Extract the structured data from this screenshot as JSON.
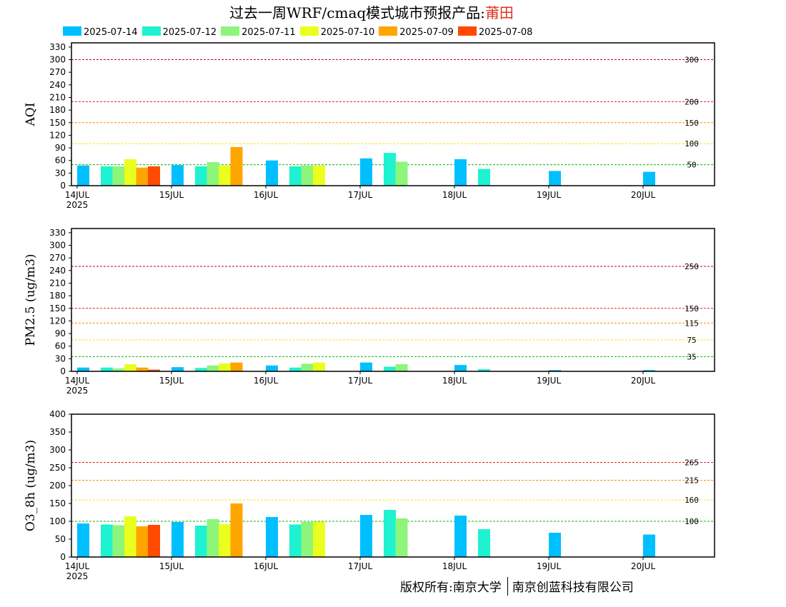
{
  "header": {
    "title": "过去一周WRF/cmaq模式城市预报产品:",
    "city": "莆田"
  },
  "legend": [
    {
      "label": "2025-07-14",
      "color": "#00bfff"
    },
    {
      "label": "2025-07-12",
      "color": "#1ef2d0"
    },
    {
      "label": "2025-07-11",
      "color": "#8cf57a"
    },
    {
      "label": "2025-07-10",
      "color": "#eaff1e"
    },
    {
      "label": "2025-07-09",
      "color": "#ffa500"
    },
    {
      "label": "2025-07-08",
      "color": "#ff4a00"
    }
  ],
  "footer": {
    "left": "版权所有:南京大学",
    "right": "南京创蓝科技有限公司"
  },
  "chart_data": [
    {
      "type": "bar",
      "ylabel": "AQI",
      "ylim": [
        0,
        340
      ],
      "yticks": [
        0,
        30,
        60,
        90,
        120,
        150,
        180,
        210,
        240,
        270,
        300,
        330
      ],
      "xlim": [
        0,
        6.9
      ],
      "day_labels": [
        "14JUL",
        "15JUL",
        "16JUL",
        "17JUL",
        "18JUL",
        "19JUL",
        "20JUL"
      ],
      "year_label": "2025",
      "thresholds": [
        {
          "value": 300,
          "label": "300",
          "color": "#b0003a"
        },
        {
          "value": 200,
          "label": "200",
          "color": "#e02020"
        },
        {
          "value": 150,
          "label": "150",
          "color": "#ff8c00"
        },
        {
          "value": 100,
          "label": "100",
          "color": "#ffe400"
        },
        {
          "value": 50,
          "label": "50",
          "color": "#00bb00"
        }
      ],
      "series": [
        {
          "name": "2025-07-14",
          "values": [
            [
              0.0,
              48
            ],
            [
              1.0,
              49
            ],
            [
              2.0,
              60
            ],
            [
              3.0,
              65
            ],
            [
              4.0,
              63
            ],
            [
              5.0,
              35
            ],
            [
              6.0,
              33
            ]
          ]
        },
        {
          "name": "2025-07-12",
          "values": [
            [
              0.25,
              46
            ],
            [
              1.25,
              46
            ],
            [
              2.25,
              46
            ],
            [
              3.25,
              78
            ],
            [
              4.25,
              40
            ]
          ]
        },
        {
          "name": "2025-07-11",
          "values": [
            [
              0.375,
              46
            ],
            [
              1.375,
              56
            ],
            [
              2.375,
              48
            ],
            [
              3.375,
              57
            ]
          ]
        },
        {
          "name": "2025-07-10",
          "values": [
            [
              0.5,
              63
            ],
            [
              1.5,
              48
            ],
            [
              2.5,
              48
            ]
          ]
        },
        {
          "name": "2025-07-09",
          "values": [
            [
              0.625,
              43
            ],
            [
              1.625,
              92
            ]
          ]
        },
        {
          "name": "2025-07-08",
          "values": [
            [
              0.75,
              46
            ]
          ]
        }
      ]
    },
    {
      "type": "bar",
      "ylabel": "PM2.5 (ug/m3)",
      "ylim": [
        0,
        340
      ],
      "yticks": [
        0,
        30,
        60,
        90,
        120,
        150,
        180,
        210,
        240,
        270,
        300,
        330
      ],
      "xlim": [
        0,
        6.9
      ],
      "day_labels": [
        "14JUL",
        "15JUL",
        "16JUL",
        "17JUL",
        "18JUL",
        "19JUL",
        "20JUL"
      ],
      "year_label": "2025",
      "thresholds": [
        {
          "value": 250,
          "label": "250",
          "color": "#b0003a"
        },
        {
          "value": 150,
          "label": "150",
          "color": "#e02020"
        },
        {
          "value": 115,
          "label": "115",
          "color": "#ff8c00"
        },
        {
          "value": 75,
          "label": "75",
          "color": "#ffe400"
        },
        {
          "value": 35,
          "label": "35",
          "color": "#00bb00"
        }
      ],
      "series": [
        {
          "name": "2025-07-14",
          "values": [
            [
              0.0,
              9
            ],
            [
              1.0,
              10
            ],
            [
              2.0,
              14
            ],
            [
              3.0,
              21
            ],
            [
              4.0,
              15
            ],
            [
              5.0,
              3
            ],
            [
              6.0,
              3
            ]
          ]
        },
        {
          "name": "2025-07-12",
          "values": [
            [
              0.25,
              9
            ],
            [
              1.25,
              8
            ],
            [
              2.25,
              9
            ],
            [
              3.25,
              11
            ],
            [
              4.25,
              5
            ]
          ]
        },
        {
          "name": "2025-07-11",
          "values": [
            [
              0.375,
              7
            ],
            [
              1.375,
              14
            ],
            [
              2.375,
              18
            ],
            [
              3.375,
              17
            ]
          ]
        },
        {
          "name": "2025-07-10",
          "values": [
            [
              0.5,
              17
            ],
            [
              1.5,
              19
            ],
            [
              2.5,
              21
            ]
          ]
        },
        {
          "name": "2025-07-09",
          "values": [
            [
              0.625,
              9
            ],
            [
              1.625,
              21
            ]
          ]
        },
        {
          "name": "2025-07-08",
          "values": [
            [
              0.75,
              4
            ]
          ]
        }
      ]
    },
    {
      "type": "bar",
      "ylabel": "O3_8h (ug/m3)",
      "ylim": [
        0,
        400
      ],
      "yticks": [
        0,
        50,
        100,
        150,
        200,
        250,
        300,
        350,
        400
      ],
      "xlim": [
        0,
        6.9
      ],
      "day_labels": [
        "14JUL",
        "15JUL",
        "16JUL",
        "17JUL",
        "18JUL",
        "19JUL",
        "20JUL"
      ],
      "year_label": "2025",
      "thresholds": [
        {
          "value": 265,
          "label": "265",
          "color": "#e02020"
        },
        {
          "value": 215,
          "label": "215",
          "color": "#ff8c00"
        },
        {
          "value": 160,
          "label": "160",
          "color": "#ffe400"
        },
        {
          "value": 100,
          "label": "100",
          "color": "#00bb00"
        }
      ],
      "series": [
        {
          "name": "2025-07-14",
          "values": [
            [
              0.0,
              94
            ],
            [
              1.0,
              98
            ],
            [
              2.0,
              112
            ],
            [
              3.0,
              118
            ],
            [
              4.0,
              116
            ],
            [
              5.0,
              68
            ],
            [
              6.0,
              63
            ]
          ]
        },
        {
          "name": "2025-07-12",
          "values": [
            [
              0.25,
              91
            ],
            [
              1.25,
              88
            ],
            [
              2.25,
              91
            ],
            [
              3.25,
              132
            ],
            [
              4.25,
              78
            ]
          ]
        },
        {
          "name": "2025-07-11",
          "values": [
            [
              0.375,
              89
            ],
            [
              1.375,
              106
            ],
            [
              2.375,
              98
            ],
            [
              3.375,
              108
            ]
          ]
        },
        {
          "name": "2025-07-10",
          "values": [
            [
              0.5,
              114
            ],
            [
              1.5,
              92
            ],
            [
              2.5,
              99
            ]
          ]
        },
        {
          "name": "2025-07-09",
          "values": [
            [
              0.625,
              86
            ],
            [
              1.625,
              150
            ]
          ]
        },
        {
          "name": "2025-07-08",
          "values": [
            [
              0.75,
              90
            ]
          ]
        }
      ]
    }
  ]
}
